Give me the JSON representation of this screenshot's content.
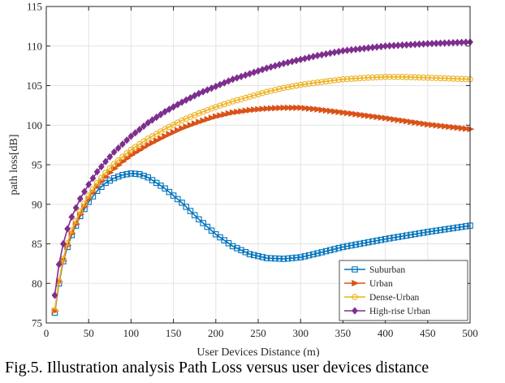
{
  "chart_data": {
    "type": "line",
    "xlabel": "User Devices Distance (m)",
    "ylabel": "path loss[dB]",
    "xlim": [
      0,
      500
    ],
    "ylim": [
      75,
      115
    ],
    "xticks": [
      0,
      50,
      100,
      150,
      200,
      250,
      300,
      350,
      400,
      450,
      500
    ],
    "yticks": [
      75,
      80,
      85,
      90,
      95,
      100,
      105,
      110,
      115
    ],
    "grid": true,
    "legend_position": "bottom-right",
    "series": [
      {
        "name": "Suburban",
        "color": "#0072bd",
        "marker": "square",
        "x": [
          10,
          15,
          20,
          25,
          30,
          40,
          50,
          60,
          70,
          80,
          90,
          100,
          110,
          120,
          140,
          160,
          180,
          200,
          220,
          240,
          260,
          280,
          300,
          320,
          350,
          400,
          450,
          500
        ],
        "values": [
          76.3,
          80.0,
          82.8,
          84.6,
          86.1,
          88.5,
          90.3,
          91.7,
          92.7,
          93.3,
          93.7,
          93.9,
          93.8,
          93.4,
          92.0,
          90.2,
          88.1,
          86.2,
          84.7,
          83.7,
          83.2,
          83.1,
          83.3,
          83.8,
          84.6,
          85.6,
          86.5,
          87.3
        ]
      },
      {
        "name": "Urban",
        "color": "#d95319",
        "marker": "triangle-right",
        "x": [
          10,
          15,
          20,
          25,
          30,
          40,
          50,
          60,
          70,
          80,
          90,
          100,
          120,
          140,
          160,
          180,
          200,
          220,
          240,
          260,
          280,
          300,
          320,
          350,
          400,
          450,
          500
        ],
        "values": [
          76.5,
          80.2,
          82.9,
          84.8,
          86.3,
          88.7,
          90.7,
          92.3,
          93.5,
          94.5,
          95.4,
          96.2,
          97.5,
          98.6,
          99.6,
          100.4,
          101.1,
          101.6,
          101.9,
          102.1,
          102.2,
          102.2,
          102.0,
          101.6,
          100.9,
          100.1,
          99.5
        ]
      },
      {
        "name": "Dense-Urban",
        "color": "#edb120",
        "marker": "circle",
        "x": [
          10,
          15,
          20,
          25,
          30,
          40,
          50,
          60,
          70,
          80,
          90,
          100,
          120,
          140,
          160,
          180,
          200,
          220,
          240,
          260,
          280,
          300,
          320,
          350,
          380,
          400,
          420,
          450,
          500
        ],
        "values": [
          76.6,
          80.3,
          83.1,
          85.1,
          86.7,
          89.1,
          91.1,
          92.7,
          94.0,
          95.1,
          96.0,
          96.9,
          98.3,
          99.5,
          100.6,
          101.5,
          102.3,
          103.0,
          103.6,
          104.2,
          104.7,
          105.1,
          105.4,
          105.8,
          106.0,
          106.1,
          106.1,
          106.0,
          105.8
        ]
      },
      {
        "name": "High-rise Urban",
        "color": "#7e2f8e",
        "marker": "diamond",
        "x": [
          10,
          15,
          20,
          25,
          30,
          40,
          50,
          60,
          70,
          80,
          90,
          100,
          120,
          140,
          160,
          180,
          200,
          220,
          240,
          260,
          280,
          300,
          320,
          350,
          400,
          450,
          500
        ],
        "values": [
          78.5,
          82.4,
          85.0,
          86.9,
          88.4,
          90.7,
          92.5,
          94.1,
          95.4,
          96.6,
          97.6,
          98.6,
          100.3,
          101.7,
          102.9,
          104.0,
          104.9,
          105.8,
          106.5,
          107.2,
          107.8,
          108.3,
          108.8,
          109.4,
          110.0,
          110.3,
          110.5
        ]
      }
    ]
  },
  "caption": "Fig.5. Illustration analysis Path Loss versus user devices distance"
}
